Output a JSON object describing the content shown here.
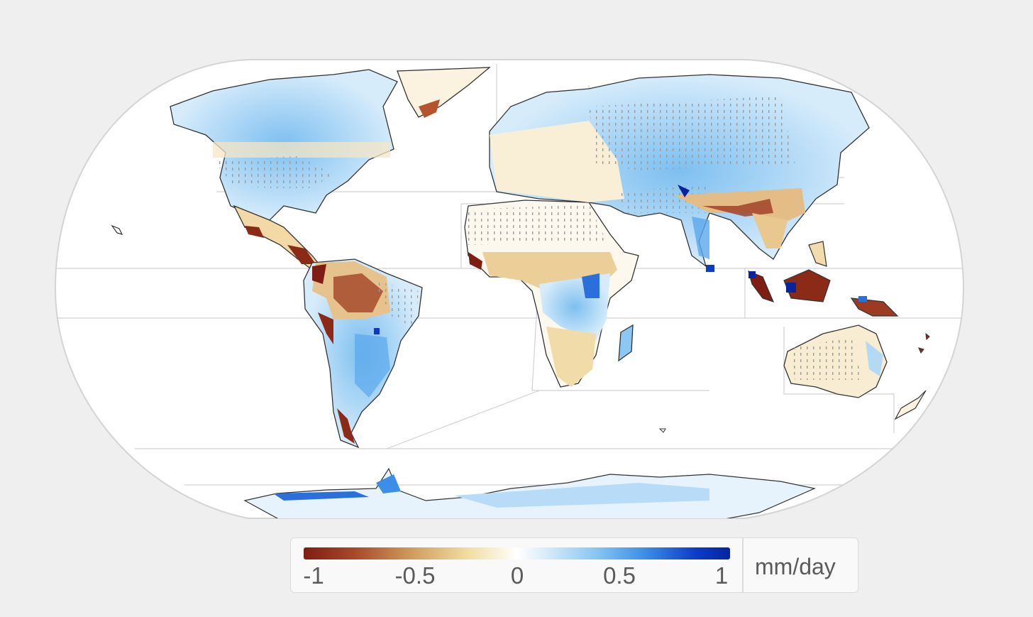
{
  "legend": {
    "ticks": [
      "-1",
      "-0.5",
      "0",
      "0.5",
      "1"
    ],
    "unit": "mm/day",
    "colors": {
      "negative_max": "#7f1d14",
      "negative_mid": "#f0dba0",
      "zero": "#ffffff",
      "positive_mid": "#8cc8f3",
      "positive_max": "#06249e"
    },
    "range": [
      -1,
      1
    ]
  },
  "map": {
    "projection": "robinson",
    "hatching": "stippled regions"
  }
}
